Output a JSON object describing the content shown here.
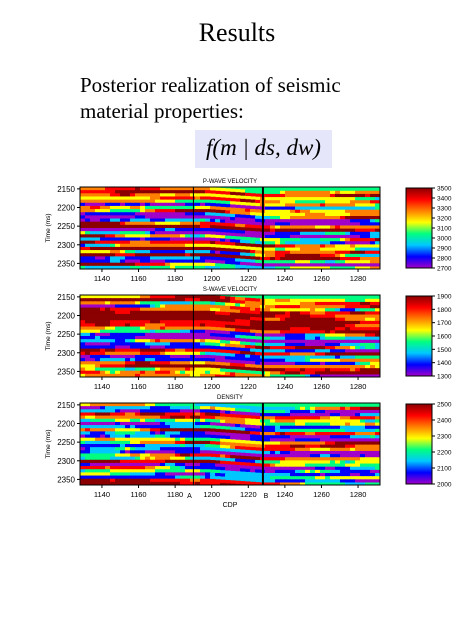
{
  "slide": {
    "title": "Results",
    "subtitle_line1": "Posterior realization of seismic",
    "subtitle_line2": "material properties:",
    "formula": "f(m | ds, dw)",
    "xlabel": "CDP",
    "marker_a": "A",
    "marker_b": "B"
  },
  "colors": {
    "formula_box": "#e6e6fa",
    "colormap": [
      "#a000c8",
      "#0000ff",
      "#00c8ff",
      "#00ff80",
      "#ffff00",
      "#ff8000",
      "#ff0000",
      "#8b0000"
    ]
  },
  "chart_data": [
    {
      "type": "heatmap",
      "title": "P-WAVE VELOCITY",
      "xlabel": "",
      "ylabel": "Time (ms)",
      "xlim": [
        1128,
        1292
      ],
      "ylim": [
        2365,
        2145
      ],
      "x_ticks": [
        1140,
        1160,
        1180,
        1200,
        1220,
        1240,
        1260,
        1280
      ],
      "y_ticks": [
        2150,
        2200,
        2250,
        2300,
        2350
      ],
      "colorbar_ticks": [
        3500,
        3400,
        3300,
        3200,
        3100,
        3000,
        2900,
        2800,
        2700
      ],
      "colorbar_range": [
        2700,
        3500
      ]
    },
    {
      "type": "heatmap",
      "title": "S-WAVE VELOCITY",
      "xlabel": "",
      "ylabel": "Time (ms)",
      "xlim": [
        1128,
        1292
      ],
      "ylim": [
        2365,
        2145
      ],
      "x_ticks": [
        1140,
        1160,
        1180,
        1200,
        1220,
        1240,
        1260,
        1280
      ],
      "y_ticks": [
        2150,
        2200,
        2250,
        2300,
        2350
      ],
      "colorbar_ticks": [
        1900,
        1800,
        1700,
        1600,
        1500,
        1400,
        1300
      ],
      "colorbar_range": [
        1300,
        1900
      ]
    },
    {
      "type": "heatmap",
      "title": "DENSITY",
      "xlabel": "CDP",
      "ylabel": "Time (ms)",
      "xlim": [
        1128,
        1292
      ],
      "ylim": [
        2365,
        2145
      ],
      "x_ticks": [
        1140,
        1160,
        1180,
        1200,
        1220,
        1240,
        1260,
        1280
      ],
      "y_ticks": [
        2150,
        2200,
        2250,
        2300,
        2350
      ],
      "colorbar_ticks": [
        2500,
        2400,
        2300,
        2200,
        2100,
        2000
      ],
      "colorbar_range": [
        2000,
        2500
      ],
      "wells": [
        {
          "label": "A",
          "cdp": 1190
        },
        {
          "label": "B",
          "cdp": 1228
        }
      ]
    }
  ]
}
